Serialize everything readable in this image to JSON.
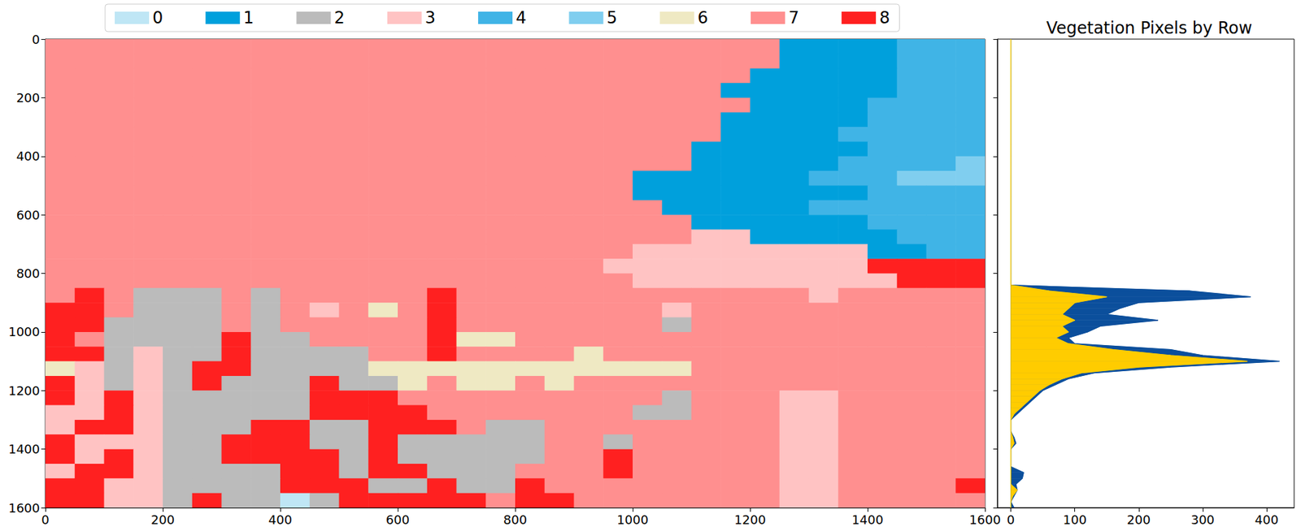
{
  "chart_data": [
    {
      "type": "heatmap",
      "legend": "top",
      "classes": [
        {
          "name": "0",
          "color": "#bfe6f5"
        },
        {
          "name": "1",
          "color": "#00a0dc"
        },
        {
          "name": "2",
          "color": "#bbbbbb"
        },
        {
          "name": "3",
          "color": "#ffc3c3"
        },
        {
          "name": "4",
          "color": "#40b4e6"
        },
        {
          "name": "5",
          "color": "#80ceef"
        },
        {
          "name": "6",
          "color": "#efe9c3"
        },
        {
          "name": "7",
          "color": "#ff8f8f"
        },
        {
          "name": "8",
          "color": "#ff2020"
        }
      ],
      "xlim": [
        0,
        1600
      ],
      "ylim": [
        1600,
        0
      ],
      "xticks": [
        0,
        200,
        400,
        600,
        800,
        1000,
        1200,
        1400,
        1600
      ],
      "yticks": [
        0,
        200,
        400,
        600,
        800,
        1000,
        1200,
        1400,
        1600
      ],
      "cells": [
        [
          7,
          7,
          7,
          7,
          7,
          7,
          7,
          7,
          7,
          7,
          7,
          7,
          7,
          7,
          7,
          7,
          7,
          7,
          7,
          7,
          7,
          7,
          7,
          7,
          7,
          1,
          1,
          1,
          1,
          4,
          4,
          4
        ],
        [
          7,
          7,
          7,
          7,
          7,
          7,
          7,
          7,
          7,
          7,
          7,
          7,
          7,
          7,
          7,
          7,
          7,
          7,
          7,
          7,
          7,
          7,
          7,
          7,
          7,
          1,
          1,
          1,
          1,
          4,
          4,
          4
        ],
        [
          7,
          7,
          7,
          7,
          7,
          7,
          7,
          7,
          7,
          7,
          7,
          7,
          7,
          7,
          7,
          7,
          7,
          7,
          7,
          7,
          7,
          7,
          7,
          7,
          1,
          1,
          1,
          1,
          1,
          4,
          4,
          4
        ],
        [
          7,
          7,
          7,
          7,
          7,
          7,
          7,
          7,
          7,
          7,
          7,
          7,
          7,
          7,
          7,
          7,
          7,
          7,
          7,
          7,
          7,
          7,
          7,
          1,
          1,
          1,
          1,
          1,
          1,
          4,
          4,
          4
        ],
        [
          7,
          7,
          7,
          7,
          7,
          7,
          7,
          7,
          7,
          7,
          7,
          7,
          7,
          7,
          7,
          7,
          7,
          7,
          7,
          7,
          7,
          7,
          7,
          7,
          1,
          1,
          1,
          1,
          4,
          4,
          4,
          4
        ],
        [
          7,
          7,
          7,
          7,
          7,
          7,
          7,
          7,
          7,
          7,
          7,
          7,
          7,
          7,
          7,
          7,
          7,
          7,
          7,
          7,
          7,
          7,
          7,
          1,
          1,
          1,
          1,
          1,
          4,
          4,
          4,
          4
        ],
        [
          7,
          7,
          7,
          7,
          7,
          7,
          7,
          7,
          7,
          7,
          7,
          7,
          7,
          7,
          7,
          7,
          7,
          7,
          7,
          7,
          7,
          7,
          7,
          1,
          1,
          1,
          1,
          4,
          4,
          4,
          4,
          4
        ],
        [
          7,
          7,
          7,
          7,
          7,
          7,
          7,
          7,
          7,
          7,
          7,
          7,
          7,
          7,
          7,
          7,
          7,
          7,
          7,
          7,
          7,
          7,
          1,
          1,
          1,
          1,
          1,
          1,
          4,
          4,
          4,
          4
        ],
        [
          7,
          7,
          7,
          7,
          7,
          7,
          7,
          7,
          7,
          7,
          7,
          7,
          7,
          7,
          7,
          7,
          7,
          7,
          7,
          7,
          7,
          7,
          1,
          1,
          1,
          1,
          1,
          4,
          4,
          4,
          4,
          5
        ],
        [
          7,
          7,
          7,
          7,
          7,
          7,
          7,
          7,
          7,
          7,
          7,
          7,
          7,
          7,
          7,
          7,
          7,
          7,
          7,
          7,
          1,
          1,
          1,
          1,
          1,
          1,
          4,
          4,
          4,
          5,
          5,
          5
        ],
        [
          7,
          7,
          7,
          7,
          7,
          7,
          7,
          7,
          7,
          7,
          7,
          7,
          7,
          7,
          7,
          7,
          7,
          7,
          7,
          7,
          1,
          1,
          1,
          1,
          1,
          1,
          1,
          1,
          4,
          4,
          4,
          4
        ],
        [
          7,
          7,
          7,
          7,
          7,
          7,
          7,
          7,
          7,
          7,
          7,
          7,
          7,
          7,
          7,
          7,
          7,
          7,
          7,
          7,
          7,
          1,
          1,
          1,
          1,
          1,
          4,
          4,
          4,
          4,
          4,
          4
        ],
        [
          7,
          7,
          7,
          7,
          7,
          7,
          7,
          7,
          7,
          7,
          7,
          7,
          7,
          7,
          7,
          7,
          7,
          7,
          7,
          7,
          7,
          7,
          1,
          1,
          1,
          1,
          1,
          1,
          4,
          4,
          4,
          4
        ],
        [
          7,
          7,
          7,
          7,
          7,
          7,
          7,
          7,
          7,
          7,
          7,
          7,
          7,
          7,
          7,
          7,
          7,
          7,
          7,
          7,
          7,
          7,
          3,
          3,
          1,
          1,
          1,
          1,
          1,
          4,
          4,
          4
        ],
        [
          7,
          7,
          7,
          7,
          7,
          7,
          7,
          7,
          7,
          7,
          7,
          7,
          7,
          7,
          7,
          7,
          7,
          7,
          7,
          7,
          3,
          3,
          3,
          3,
          3,
          3,
          3,
          3,
          1,
          1,
          4,
          4
        ],
        [
          7,
          7,
          7,
          7,
          7,
          7,
          7,
          7,
          7,
          7,
          7,
          7,
          7,
          7,
          7,
          7,
          7,
          7,
          7,
          3,
          3,
          3,
          3,
          3,
          3,
          3,
          3,
          3,
          8,
          8,
          8,
          8
        ],
        [
          7,
          7,
          7,
          7,
          7,
          7,
          7,
          7,
          7,
          7,
          7,
          7,
          7,
          7,
          7,
          7,
          7,
          7,
          7,
          7,
          3,
          3,
          3,
          3,
          3,
          3,
          3,
          3,
          3,
          8,
          8,
          8
        ],
        [
          7,
          8,
          7,
          2,
          2,
          2,
          7,
          2,
          7,
          7,
          7,
          7,
          7,
          8,
          7,
          7,
          7,
          7,
          7,
          7,
          7,
          7,
          7,
          7,
          7,
          7,
          3,
          7,
          7,
          7,
          7,
          7
        ],
        [
          8,
          8,
          7,
          2,
          2,
          2,
          7,
          2,
          7,
          3,
          7,
          6,
          7,
          8,
          7,
          7,
          7,
          7,
          7,
          7,
          7,
          3,
          7,
          7,
          7,
          7,
          7,
          7,
          7,
          7,
          7,
          7
        ],
        [
          8,
          8,
          2,
          2,
          2,
          2,
          7,
          2,
          7,
          7,
          7,
          7,
          7,
          8,
          7,
          7,
          7,
          7,
          7,
          7,
          7,
          2,
          7,
          7,
          7,
          7,
          7,
          7,
          7,
          7,
          7,
          7
        ],
        [
          8,
          7,
          2,
          2,
          2,
          2,
          8,
          2,
          2,
          7,
          7,
          7,
          7,
          8,
          6,
          6,
          7,
          7,
          7,
          7,
          7,
          7,
          7,
          7,
          7,
          7,
          7,
          7,
          7,
          7,
          7,
          7
        ],
        [
          8,
          8,
          2,
          3,
          2,
          2,
          8,
          2,
          2,
          2,
          2,
          7,
          7,
          8,
          7,
          7,
          7,
          7,
          6,
          7,
          7,
          7,
          7,
          7,
          7,
          7,
          7,
          7,
          7,
          7,
          7,
          7
        ],
        [
          6,
          3,
          2,
          3,
          2,
          8,
          8,
          2,
          2,
          2,
          2,
          6,
          6,
          6,
          6,
          6,
          6,
          6,
          6,
          6,
          6,
          6,
          7,
          7,
          7,
          7,
          7,
          7,
          7,
          7,
          7,
          7
        ],
        [
          8,
          3,
          2,
          3,
          2,
          8,
          2,
          2,
          2,
          8,
          2,
          2,
          6,
          7,
          6,
          6,
          7,
          6,
          7,
          7,
          7,
          7,
          7,
          7,
          7,
          7,
          7,
          7,
          7,
          7,
          7,
          7
        ],
        [
          8,
          3,
          8,
          3,
          2,
          2,
          2,
          2,
          2,
          8,
          8,
          8,
          7,
          7,
          7,
          7,
          7,
          7,
          7,
          7,
          7,
          2,
          7,
          7,
          7,
          3,
          3,
          7,
          7,
          7,
          7,
          7
        ],
        [
          3,
          3,
          8,
          3,
          2,
          2,
          2,
          2,
          2,
          8,
          8,
          8,
          8,
          7,
          7,
          7,
          7,
          7,
          7,
          7,
          2,
          2,
          7,
          7,
          7,
          3,
          3,
          7,
          7,
          7,
          7,
          7
        ],
        [
          3,
          8,
          8,
          3,
          2,
          2,
          2,
          8,
          8,
          2,
          2,
          8,
          8,
          8,
          7,
          2,
          2,
          7,
          7,
          7,
          7,
          7,
          7,
          7,
          7,
          3,
          3,
          7,
          7,
          7,
          7,
          7
        ],
        [
          8,
          3,
          3,
          3,
          2,
          2,
          8,
          8,
          8,
          2,
          2,
          8,
          2,
          2,
          2,
          2,
          2,
          7,
          7,
          2,
          7,
          7,
          7,
          7,
          7,
          3,
          3,
          7,
          7,
          7,
          7,
          7
        ],
        [
          8,
          3,
          8,
          3,
          2,
          2,
          8,
          8,
          8,
          8,
          2,
          8,
          2,
          2,
          2,
          2,
          2,
          7,
          7,
          8,
          7,
          7,
          7,
          7,
          7,
          3,
          3,
          7,
          7,
          7,
          7,
          7
        ],
        [
          3,
          8,
          8,
          3,
          2,
          2,
          2,
          2,
          8,
          8,
          2,
          8,
          8,
          2,
          2,
          2,
          7,
          7,
          7,
          8,
          7,
          7,
          7,
          7,
          7,
          3,
          3,
          7,
          7,
          7,
          7,
          7
        ],
        [
          8,
          8,
          3,
          3,
          2,
          2,
          2,
          2,
          8,
          8,
          8,
          2,
          2,
          8,
          2,
          2,
          8,
          7,
          7,
          7,
          7,
          7,
          7,
          7,
          7,
          3,
          3,
          7,
          7,
          7,
          7,
          8
        ],
        [
          8,
          8,
          3,
          3,
          2,
          8,
          2,
          2,
          0,
          2,
          8,
          8,
          8,
          8,
          8,
          7,
          8,
          8,
          7,
          7,
          7,
          7,
          7,
          7,
          7,
          3,
          3,
          7,
          7,
          7,
          7,
          7
        ]
      ]
    },
    {
      "type": "area",
      "title": "Vegetation Pixels by Row",
      "orientation": "horizontal",
      "stacked": false,
      "tick_labels": "x",
      "xlim": [
        -21,
        443
      ],
      "ylim": [
        1600,
        0
      ],
      "xticks": [
        0,
        100,
        200,
        300,
        400
      ],
      "yticks": [
        0,
        200,
        400,
        600,
        800,
        1000,
        1200,
        1400,
        1600
      ],
      "y": [
        0,
        20,
        40,
        60,
        80,
        100,
        120,
        140,
        160,
        180,
        200,
        220,
        240,
        260,
        280,
        300,
        320,
        340,
        360,
        380,
        400,
        420,
        440,
        460,
        480,
        500,
        520,
        540,
        560,
        580,
        600,
        620,
        640,
        660,
        680,
        700,
        720,
        740,
        760,
        780,
        800,
        820,
        840,
        860,
        880,
        900,
        920,
        940,
        960,
        980,
        1000,
        1020,
        1040,
        1060,
        1080,
        1100,
        1120,
        1140,
        1160,
        1180,
        1200,
        1220,
        1240,
        1260,
        1280,
        1300,
        1320,
        1340,
        1360,
        1380,
        1400,
        1420,
        1440,
        1460,
        1480,
        1500,
        1520,
        1540,
        1560,
        1580,
        1600
      ],
      "series": [
        {
          "color": "#0b4f9c",
          "values": [
            0,
            0,
            0,
            0,
            0,
            0,
            0,
            0,
            0,
            0,
            0,
            0,
            0,
            0,
            0,
            0,
            0,
            0,
            0,
            0,
            0,
            0,
            0,
            0,
            0,
            0,
            0,
            0,
            0,
            0,
            0,
            0,
            0,
            0,
            0,
            0,
            0,
            0,
            0,
            0,
            0,
            0,
            0,
            280,
            375,
            200,
            170,
            150,
            230,
            140,
            120,
            90,
            100,
            250,
            300,
            420,
            250,
            130,
            90,
            70,
            50,
            40,
            30,
            20,
            10,
            0,
            0,
            0,
            5,
            8,
            0,
            0,
            0,
            0,
            20,
            18,
            8,
            10,
            5,
            0,
            5
          ]
        },
        {
          "color": "#ffcc00",
          "values": [
            0,
            0,
            0,
            0,
            0,
            0,
            0,
            0,
            0,
            0,
            0,
            0,
            0,
            0,
            0,
            0,
            0,
            0,
            0,
            0,
            0,
            0,
            0,
            0,
            0,
            0,
            0,
            0,
            0,
            0,
            0,
            0,
            0,
            0,
            0,
            0,
            0,
            0,
            0,
            0,
            0,
            0,
            0,
            60,
            150,
            100,
            90,
            80,
            100,
            80,
            90,
            70,
            90,
            160,
            250,
            370,
            200,
            110,
            80,
            60,
            45,
            35,
            25,
            15,
            5,
            0,
            0,
            0,
            3,
            5,
            0,
            0,
            0,
            0,
            0,
            0,
            0,
            10,
            3,
            0,
            0
          ]
        }
      ]
    }
  ]
}
